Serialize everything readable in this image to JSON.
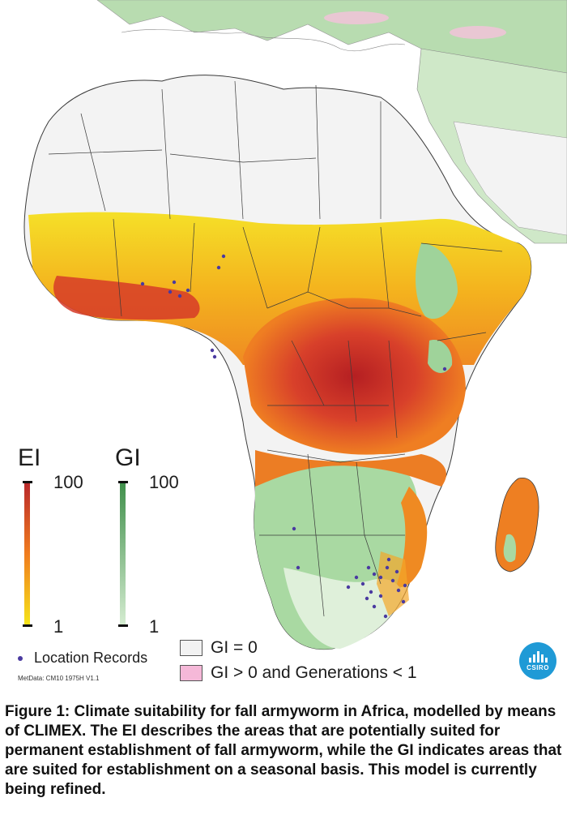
{
  "legend": {
    "ei": {
      "title": "EI",
      "max_label": "100",
      "min_label": "1",
      "color_max": "#c0272d",
      "color_mid": "#f07c1e",
      "color_min": "#f5e61a"
    },
    "gi": {
      "title": "GI",
      "max_label": "100",
      "min_label": "1",
      "color_max": "#3f8f4a",
      "color_min": "#d6edd2"
    },
    "location_records": "Location Records",
    "gi_zero": "GI = 0",
    "gi_generations": "GI > 0 and Generations < 1",
    "gi_zero_color": "#f2f2f2",
    "gi_generations_color": "#f5b8d8"
  },
  "metdata": "MetData: CM10 1975H V1.1",
  "logo": {
    "text": "CSIRO",
    "color": "#1f9ad6"
  },
  "caption": "Figure 1: Climate suitability for fall armyworm in Africa, modelled by means of CLIMEX. The EI describes the areas that are potentially suited for permanent establishment of fall armyworm, while the GI indicates areas that are suited for establishment on a seasonal basis. This model is currently being refined.",
  "map_colors": {
    "sea": "#ffffff",
    "sahara": "#f4f4f4",
    "europe_green": "#a9d6a0",
    "sahel_yellow": "#f2d21c",
    "orange": "#f08a22",
    "red_core": "#c92b26",
    "southern_green": "#8fcf8a",
    "border": "#3a3a3a",
    "record_dot": "#4a3aa0"
  }
}
